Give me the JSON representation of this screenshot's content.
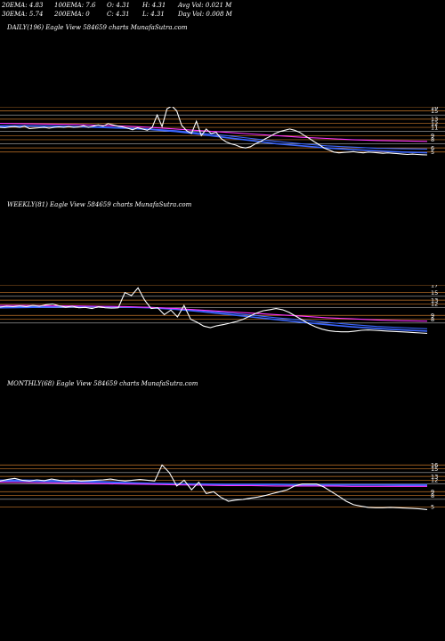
{
  "header": {
    "row1": [
      "20EMA: 4.83",
      "100EMA: 7.6",
      "O: 4.31",
      "H: 4.31",
      "Avg Vol: 0.021 M"
    ],
    "row2": [
      "30EMA: 5.74",
      "200EMA: 0",
      "C: 4.31",
      "L: 4.31",
      "Day Vol: 0.008  M"
    ]
  },
  "colors": {
    "price": "#ffffff",
    "ema_blue": "#3a66ff",
    "ema_magenta": "#ff33ff",
    "level_orange": "#c8782a",
    "level_gray": "#b0b0b0"
  },
  "chart_data": [
    {
      "type": "line",
      "title": "DAILY(196) Eagle  View  584659 charts MunafaSutra.com",
      "ylim": [
        3,
        16
      ],
      "yticks": [
        "16",
        "15",
        "13",
        "12",
        "11",
        "9",
        "8",
        "6",
        "5"
      ],
      "price": [
        11.0,
        10.9,
        11.1,
        11.2,
        11.0,
        11.3,
        10.7,
        10.8,
        10.9,
        11.0,
        10.8,
        11.0,
        11.1,
        11.0,
        11.2,
        11.0,
        11.1,
        11.4,
        11.0,
        11.3,
        11.6,
        11.3,
        11.9,
        11.6,
        11.3,
        11.1,
        10.8,
        10.4,
        10.9,
        10.6,
        10.3,
        11.0,
        14.0,
        11.2,
        15.5,
        16.2,
        15.0,
        11.5,
        10.2,
        9.5,
        12.5,
        9.0,
        10.6,
        9.5,
        9.8,
        8.3,
        7.5,
        7.0,
        6.7,
        6.2,
        6.0,
        6.3,
        7.0,
        7.5,
        8.2,
        8.8,
        9.5,
        10.0,
        10.3,
        10.6,
        10.3,
        9.8,
        9.0,
        8.3,
        7.5,
        6.8,
        6.0,
        5.5,
        5.0,
        4.8,
        4.9,
        5.0,
        5.1,
        4.9,
        4.8,
        5.0,
        4.9,
        4.8,
        4.7,
        4.8,
        4.7,
        4.6,
        4.5,
        4.4,
        4.5,
        4.4,
        4.35,
        4.31
      ],
      "ema_series": [
        {
          "color": "blue",
          "values": [
            11.2,
            11.3,
            11.3,
            11.2,
            11.0,
            10.8,
            10.5,
            10.0,
            9.3,
            8.5,
            7.8,
            7.0,
            6.5,
            6.0,
            5.6,
            5.3,
            5.0,
            4.83
          ]
        },
        {
          "color": "blue",
          "values": [
            11.4,
            11.4,
            11.3,
            11.2,
            11.1,
            10.9,
            10.6,
            10.2,
            9.6,
            9.0,
            8.3,
            7.6,
            7.0,
            6.5,
            6.2,
            5.9,
            5.8,
            5.74
          ]
        },
        {
          "color": "magenta",
          "values": [
            12.0,
            11.9,
            11.8,
            11.7,
            11.5,
            11.3,
            11.0,
            10.6,
            10.2,
            9.8,
            9.4,
            9.0,
            8.6,
            8.3,
            8.0,
            7.8,
            7.7,
            7.6
          ]
        }
      ],
      "levels_orange": [
        16,
        15,
        13,
        12,
        11,
        9,
        8,
        6,
        5
      ],
      "levels_gray": [
        14,
        10,
        7
      ]
    },
    {
      "type": "line",
      "title": "WEEKLY(81) Eagle  View  584659 charts MunafaSutra.com",
      "ylim": [
        3,
        17
      ],
      "yticks": [
        "17",
        "15",
        "13",
        "12",
        "9",
        "8"
      ],
      "price": [
        11.2,
        11.4,
        11.3,
        11.5,
        11.3,
        11.6,
        11.4,
        11.8,
        12.0,
        11.5,
        11.2,
        11.4,
        11.0,
        11.1,
        10.8,
        11.3,
        11.0,
        10.9,
        11.0,
        15.0,
        14.2,
        16.2,
        13.0,
        10.8,
        11.0,
        9.2,
        10.4,
        8.6,
        11.6,
        8.0,
        7.2,
        6.2,
        5.8,
        6.3,
        6.6,
        7.0,
        7.4,
        8.0,
        8.8,
        9.6,
        10.2,
        10.5,
        10.8,
        10.5,
        9.8,
        8.8,
        7.8,
        6.8,
        6.0,
        5.4,
        5.0,
        4.8,
        4.7,
        4.7,
        4.9,
        5.1,
        5.2,
        5.1,
        5.0,
        4.9,
        4.8,
        4.7,
        4.6,
        4.5,
        4.4,
        4.31
      ],
      "ema_series": [
        {
          "color": "blue",
          "values": [
            11.0,
            11.1,
            11.2,
            11.3,
            11.3,
            11.2,
            11.0,
            10.6,
            10.0,
            9.3,
            8.6,
            7.9,
            7.2,
            6.6,
            6.0,
            5.6,
            5.2,
            4.9
          ]
        },
        {
          "color": "blue",
          "values": [
            11.3,
            11.3,
            11.4,
            11.4,
            11.3,
            11.2,
            11.1,
            10.8,
            10.3,
            9.7,
            9.1,
            8.4,
            7.8,
            7.2,
            6.6,
            6.1,
            5.8,
            5.5
          ]
        },
        {
          "color": "magenta",
          "values": [
            11.6,
            11.6,
            11.5,
            11.5,
            11.4,
            11.3,
            11.1,
            10.8,
            10.4,
            10.0,
            9.6,
            9.2,
            8.8,
            8.4,
            8.1,
            7.8,
            7.6,
            7.5
          ]
        }
      ],
      "levels_orange": [
        17,
        15,
        13,
        12,
        9,
        8
      ],
      "levels_gray": [
        14,
        11,
        7
      ]
    },
    {
      "type": "line",
      "title": "MONTHLY(68) Eagle  View  584659 charts MunafaSutra.com",
      "ylim": [
        3,
        17
      ],
      "yticks": [
        "16",
        "15",
        "13",
        "12",
        "9",
        "8",
        "5"
      ],
      "price": [
        11.8,
        12.2,
        12.5,
        12.0,
        11.8,
        12.1,
        11.9,
        12.3,
        12.0,
        11.8,
        12.0,
        11.8,
        11.9,
        12.0,
        12.1,
        12.3,
        12.0,
        11.8,
        12.0,
        12.2,
        12.0,
        11.8,
        16.0,
        14.0,
        10.5,
        12.0,
        9.5,
        11.5,
        8.5,
        9.0,
        7.5,
        6.5,
        6.8,
        7.0,
        7.3,
        7.6,
        8.0,
        8.5,
        9.0,
        9.5,
        10.5,
        11.0,
        11.0,
        11.0,
        10.2,
        9.0,
        7.8,
        6.5,
        5.6,
        5.2,
        4.9,
        4.8,
        4.8,
        4.9,
        4.8,
        4.7,
        4.6,
        4.5,
        4.31
      ],
      "ema_series": [
        {
          "color": "blue",
          "values": [
            12.0,
            12.0,
            11.9,
            11.8,
            11.6,
            11.4,
            11.2,
            11.1,
            11.0,
            10.9,
            10.9,
            10.9,
            10.8,
            10.8,
            10.8,
            10.8,
            10.8,
            10.8
          ]
        },
        {
          "color": "blue",
          "values": [
            11.8,
            11.7,
            11.6,
            11.5,
            11.4,
            11.2,
            11.1,
            11.0,
            10.9,
            10.8,
            10.8,
            10.8,
            10.7,
            10.7,
            10.7,
            10.7,
            10.6,
            10.6
          ]
        },
        {
          "color": "magenta",
          "values": [
            11.5,
            11.4,
            11.3,
            11.2,
            11.1,
            11.0,
            10.9,
            10.8,
            10.7,
            10.6,
            10.6,
            10.5,
            10.5,
            10.5,
            10.4,
            10.4,
            10.4,
            10.4
          ]
        }
      ],
      "levels_orange": [
        16,
        15,
        13,
        12,
        9,
        8,
        5
      ],
      "levels_gray": [
        14,
        11,
        7
      ]
    }
  ]
}
